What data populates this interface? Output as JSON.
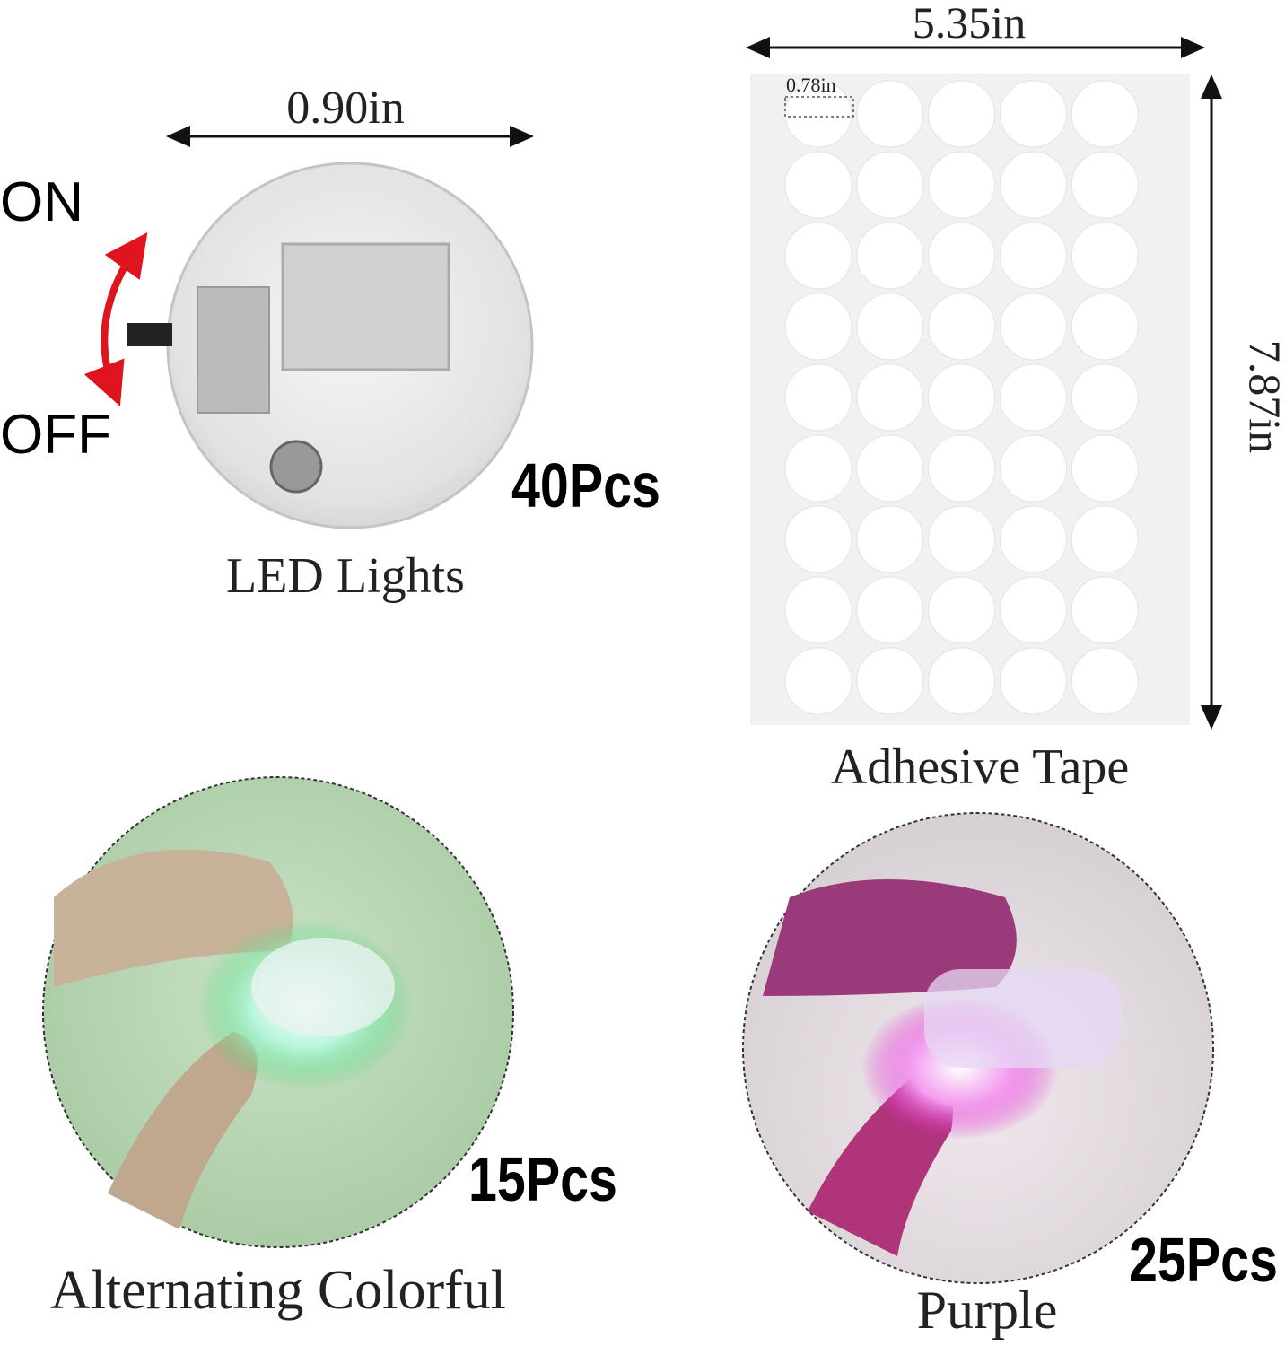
{
  "led_lights": {
    "width_label": "0.90in",
    "on_label": "ON",
    "off_label": "OFF",
    "count": "40Pcs",
    "caption": "LED Lights"
  },
  "adhesive_tape": {
    "width_label": "5.35in",
    "dot_label": "0.78in",
    "height_label": "7.87in",
    "caption": "Adhesive Tape"
  },
  "colorful": {
    "count": "15Pcs",
    "caption": "Alternating Colorful"
  },
  "purple": {
    "count": "25Pcs",
    "caption": "Purple"
  }
}
